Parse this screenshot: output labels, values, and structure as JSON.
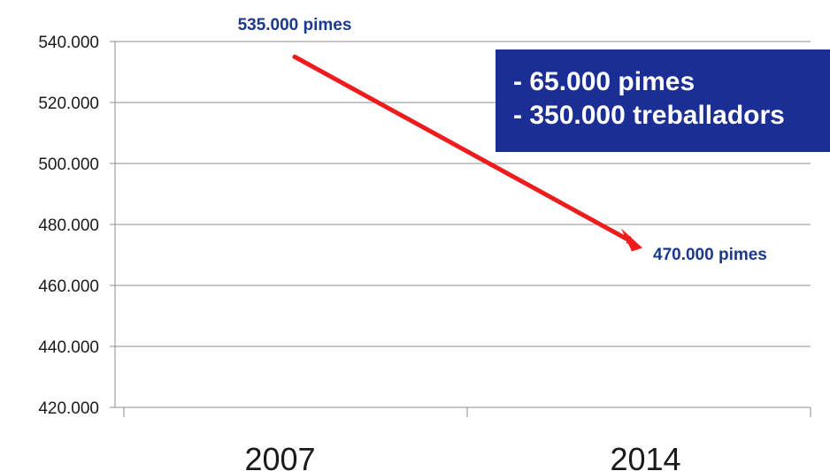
{
  "chart_data": {
    "type": "line",
    "categories": [
      "2007",
      "2014"
    ],
    "ylim": [
      420000,
      540000
    ],
    "yticks": [
      420000,
      440000,
      460000,
      480000,
      500000,
      520000,
      540000
    ],
    "ytick_labels": [
      "420.000",
      "440.000",
      "460.000",
      "480.000",
      "500.000",
      "520.000",
      "540.000"
    ],
    "series": [
      {
        "values": [
          535000,
          470000
        ],
        "color": "#ee1c1c"
      }
    ],
    "data_labels": [
      "535.000 pimes",
      "470.000 pimes"
    ],
    "grid": true,
    "title": "",
    "xlabel": "",
    "ylabel": ""
  },
  "callout": {
    "lines": [
      "- 65.000 pimes",
      "- 350.000 treballadors"
    ],
    "background": "#1a2e94",
    "text_color": "#ffffff"
  },
  "colors": {
    "label": "#1c3a8c",
    "grid": "#8c8c8c",
    "arrow": "#ee1c1c"
  }
}
